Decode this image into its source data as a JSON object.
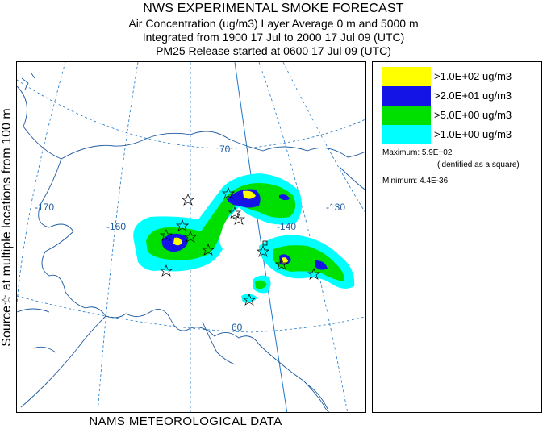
{
  "header": {
    "title": "NWS EXPERIMENTAL SMOKE FORECAST",
    "line2": "Air Concentration (ug/m3) Layer Average    0 m and  5000 m",
    "line3": "Integrated from 1900 17 Jul to 2000 17 Jul 09 (UTC)",
    "line4": "PM25 Release started at 0600 17 Jul 09 (UTC)"
  },
  "side_label": "Source☆   at multiple locations    from  100 m",
  "footer": "NAMS METEOROLOGICAL DATA",
  "map": {
    "grid_labels": {
      "lat70": "70",
      "lat60": "60",
      "lon170": "-170",
      "lon160": "-160",
      "lon140": "-140",
      "lon130": "-130"
    },
    "colors": {
      "land_outline": "#1e5aa0",
      "grid": "#1e78c8",
      "plume_cyan": "#00ffff",
      "plume_green": "#00e000",
      "plume_blue": "#1414e6",
      "plume_yellow": "#ffff00"
    }
  },
  "legend": {
    "items": [
      {
        "label": ">1.0E+02 ug/m3",
        "color": "#ffff00"
      },
      {
        "label": ">2.0E+01 ug/m3",
        "color": "#1414e6"
      },
      {
        "label": ">5.0E+00 ug/m3",
        "color": "#00e000"
      },
      {
        "label": ">1.0E+00 ug/m3",
        "color": "#00ffff"
      }
    ],
    "maximum": "Maximum: 5.9E+02",
    "maximum_note": "(identified as a square)",
    "minimum": "Minimum: 4.4E-36"
  }
}
